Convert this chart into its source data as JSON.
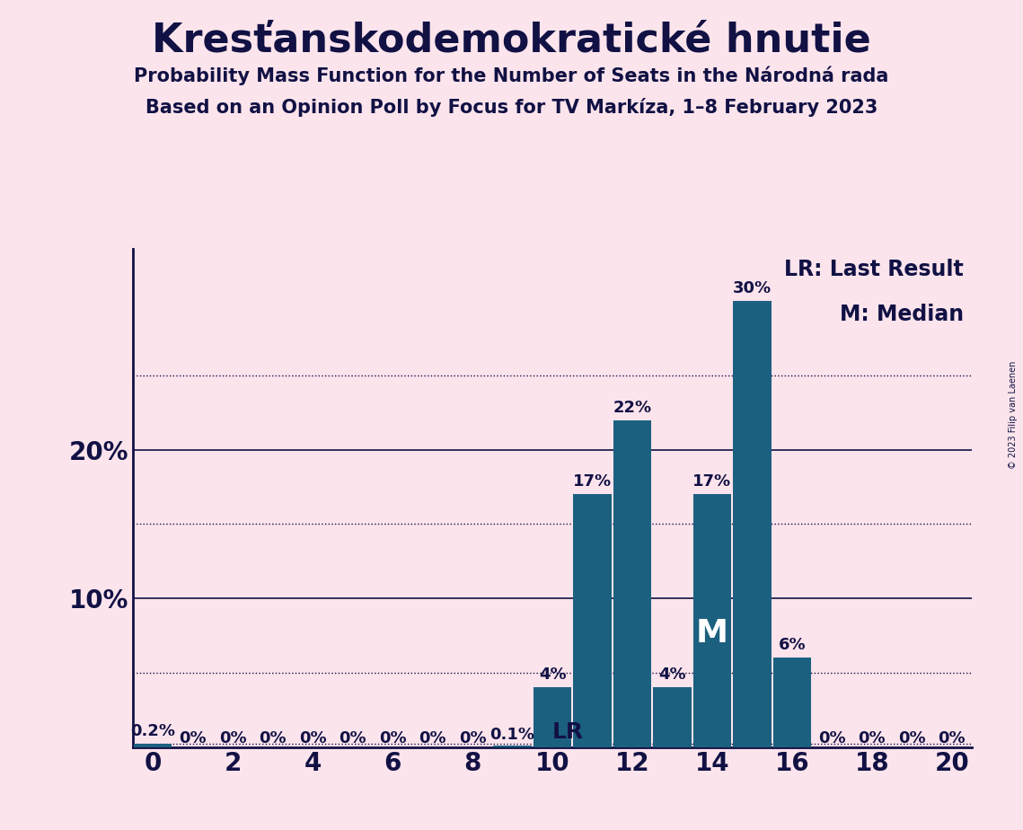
{
  "title": "Kresťanskodemokratické hnutie",
  "subtitle1": "Probability Mass Function for the Number of Seats in the Národná rada",
  "subtitle2": "Based on an Opinion Poll by Focus for TV Markíza, 1–8 February 2023",
  "copyright": "© 2023 Filip van Laenen",
  "seats": [
    0,
    1,
    2,
    3,
    4,
    5,
    6,
    7,
    8,
    9,
    10,
    11,
    12,
    13,
    14,
    15,
    16,
    17,
    18,
    19,
    20
  ],
  "probabilities": [
    0.002,
    0.0,
    0.0,
    0.0,
    0.0,
    0.0,
    0.0,
    0.0,
    0.0,
    0.001,
    0.04,
    0.17,
    0.22,
    0.04,
    0.17,
    0.3,
    0.06,
    0.0,
    0.0,
    0.0,
    0.0
  ],
  "labels": [
    "0.2%",
    "0%",
    "0%",
    "0%",
    "0%",
    "0%",
    "0%",
    "0%",
    "0%",
    "0.1%",
    "4%",
    "17%",
    "22%",
    "4%",
    "17%",
    "30%",
    "6%",
    "0%",
    "0%",
    "0%",
    "0%"
  ],
  "bar_color": "#1c6080",
  "background_color": "#fce4ec",
  "text_color": "#111144",
  "lr_seat": 0,
  "median_seat": 14,
  "xlim": [
    -0.5,
    20.5
  ],
  "ylim": [
    0,
    0.335
  ],
  "grid_lines_dotted": [
    0.05,
    0.15,
    0.25
  ],
  "grid_lines_solid": [
    0.1,
    0.2
  ],
  "lr_line_y": 0.002,
  "xticks": [
    0,
    2,
    4,
    6,
    8,
    10,
    12,
    14,
    16,
    18,
    20
  ],
  "ytick_positions": [
    0.1,
    0.2
  ],
  "ytick_labels": [
    "10%",
    "20%"
  ],
  "lr_label": "LR",
  "median_label": "M",
  "legend_lr": "LR: Last Result",
  "legend_m": "M: Median",
  "bar_label_fontsize": 13,
  "axis_tick_fontsize": 20,
  "legend_fontsize": 17,
  "lr_label_fontsize": 18,
  "median_label_fontsize": 26,
  "title_fontsize": 32,
  "subtitle_fontsize": 15
}
